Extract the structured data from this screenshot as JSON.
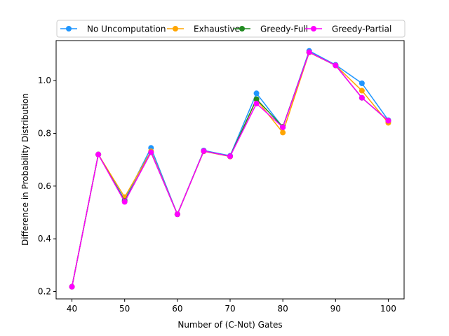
{
  "chart_data": {
    "type": "line",
    "title": "",
    "xlabel": "Number of (C-Not) Gates",
    "ylabel": "Difference in Probability Distribution",
    "x": [
      40,
      45,
      50,
      55,
      60,
      65,
      70,
      75,
      80,
      85,
      90,
      95,
      100
    ],
    "xlim": [
      37,
      103
    ],
    "ylim": [
      0.172,
      1.152
    ],
    "xticks": [
      40,
      50,
      60,
      70,
      80,
      90,
      100
    ],
    "yticks": [
      0.2,
      0.4,
      0.6,
      0.8,
      1.0
    ],
    "ytick_labels": [
      "0.2",
      "0.4",
      "0.6",
      "0.8",
      "1.0"
    ],
    "grid": false,
    "legend_position": "top",
    "legend_columns": 4,
    "series": [
      {
        "name": "No Uncomputation",
        "color": "#1f96ff",
        "marker": "circle",
        "values": [
          0.218,
          0.72,
          0.548,
          0.745,
          0.493,
          0.735,
          0.715,
          0.952,
          0.823,
          1.113,
          1.06,
          0.99,
          0.85
        ]
      },
      {
        "name": "Exhaustive",
        "color": "#ffa500",
        "marker": "circle",
        "values": [
          0.218,
          0.72,
          0.558,
          0.732,
          0.493,
          0.732,
          0.712,
          0.928,
          0.803,
          1.107,
          1.058,
          0.962,
          0.84
        ]
      },
      {
        "name": "Greedy-Full",
        "color": "#228b22",
        "marker": "circle",
        "values": [
          0.218,
          0.72,
          0.543,
          0.728,
          0.493,
          0.733,
          0.713,
          0.93,
          0.825,
          1.108,
          1.058,
          0.935,
          0.848
        ]
      },
      {
        "name": "Greedy-Partial",
        "color": "#ff00ff",
        "marker": "circle",
        "values": [
          0.218,
          0.72,
          0.54,
          0.728,
          0.493,
          0.733,
          0.713,
          0.913,
          0.823,
          1.108,
          1.058,
          0.935,
          0.848
        ]
      }
    ]
  }
}
